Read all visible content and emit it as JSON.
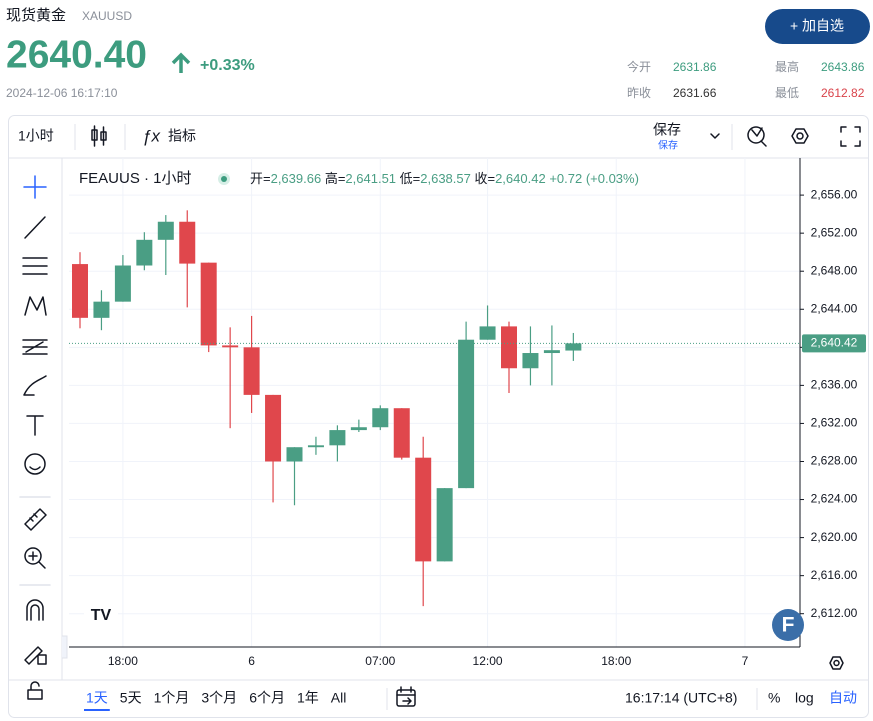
{
  "header": {
    "name": "现货黄金",
    "symbol": "XAUUSD",
    "price": "2640.40",
    "change": "+0.33%",
    "timestamp": "2024-12-06 16:17:10",
    "button": "+ 加自选",
    "stats": [
      {
        "label": "今开",
        "value": "2631.86"
      },
      {
        "label": "最高",
        "value": "2643.86"
      },
      {
        "label": "昨收",
        "value": "2631.66"
      },
      {
        "label": "最低",
        "value": "2612.82"
      }
    ]
  },
  "toolbar": {
    "interval": "1小时",
    "indicators": "指标",
    "save": "保存",
    "save_sub": "保存"
  },
  "chart_data": {
    "type": "candlestick",
    "symbol_label": "FEAUUS · 1小时",
    "legend": [
      {
        "label": "开=",
        "value": "2,639.66"
      },
      {
        "label": "高=",
        "value": "2,641.51"
      },
      {
        "label": "低=",
        "value": "2,638.57"
      },
      {
        "label": "收=",
        "value": "2,640.42"
      }
    ],
    "change_text": "+0.72 (+0.03%)",
    "categories": [
      null,
      null,
      "18:00",
      null,
      null,
      null,
      null,
      null,
      "6",
      null,
      null,
      null,
      null,
      null,
      "07:00",
      null,
      null,
      null,
      null,
      "12:00",
      null,
      null,
      null,
      null,
      null,
      "18:00",
      null,
      null,
      null,
      null,
      null,
      "7",
      null,
      null
    ],
    "open": [
      2648.75,
      2643.1,
      2644.8,
      2648.6,
      2651.3,
      2653.2,
      2648.9,
      2640.2,
      2640.0,
      2635.0,
      2628.0,
      2629.5,
      2629.7,
      2631.3,
      2631.6,
      2633.6,
      2628.4,
      2617.5,
      2625.2,
      2640.8,
      2642.2,
      2637.8,
      2639.4,
      2639.66,
      null,
      null,
      null,
      null,
      null,
      null,
      null,
      null,
      null,
      null
    ],
    "high": [
      2650.0,
      2646.0,
      2649.7,
      2652.1,
      2653.9,
      2654.4,
      2648.9,
      2642.1,
      2643.3,
      2635.0,
      2629.5,
      2630.6,
      2631.8,
      2632.4,
      2633.9,
      2633.6,
      2630.6,
      2625.2,
      2642.7,
      2644.4,
      2642.7,
      2642.2,
      2642.3,
      2641.51,
      null,
      null,
      null,
      null,
      null,
      null,
      null,
      null,
      null,
      null
    ],
    "low": [
      2642.0,
      2641.8,
      2644.8,
      2648.1,
      2647.6,
      2644.2,
      2639.5,
      2631.5,
      2633.1,
      2623.7,
      2623.4,
      2628.7,
      2628.0,
      2631.1,
      2631.3,
      2628.2,
      2612.8,
      2617.5,
      2625.2,
      2640.8,
      2635.2,
      2636.0,
      2636.0,
      2638.57,
      null,
      null,
      null,
      null,
      null,
      null,
      null,
      null,
      null,
      null
    ],
    "close": [
      2643.1,
      2644.8,
      2648.6,
      2651.3,
      2653.2,
      2648.8,
      2640.2,
      2640.0,
      2635.0,
      2628.0,
      2629.5,
      2629.7,
      2631.3,
      2631.6,
      2633.6,
      2628.4,
      2617.5,
      2625.2,
      2640.8,
      2642.2,
      2637.8,
      2639.4,
      2639.7,
      2640.42,
      null,
      null,
      null,
      null,
      null,
      null,
      null,
      null,
      null,
      null
    ],
    "up_color": "#4a9e84",
    "down_color": "#e0474c",
    "ylim": [
      2608.5,
      2659.9
    ],
    "yticks": [
      {
        "value": 2612,
        "label": "2,612.00"
      },
      {
        "value": 2616,
        "label": "2,616.00"
      },
      {
        "value": 2620,
        "label": "2,620.00"
      },
      {
        "value": 2624,
        "label": "2,624.00"
      },
      {
        "value": 2628,
        "label": "2,628.00"
      },
      {
        "value": 2632,
        "label": "2,632.00"
      },
      {
        "value": 2636,
        "label": "2,636.00"
      },
      {
        "value": 2640,
        "label": "2,640.00"
      },
      {
        "value": 2644,
        "label": "2,644.00"
      },
      {
        "value": 2648,
        "label": "2,648.00"
      },
      {
        "value": 2652,
        "label": "2,652.00"
      },
      {
        "value": 2656,
        "label": "2,656.00"
      }
    ],
    "grid": true,
    "last_price": {
      "value": 2640.42,
      "label": "2,640.42"
    }
  },
  "footer": {
    "ranges": [
      "1天",
      "5天",
      "1个月",
      "3个月",
      "6个月",
      "1年",
      "All"
    ],
    "clock": "16:17:14 (UTC+8)",
    "percent": "%",
    "log": "log",
    "auto": "自动"
  }
}
